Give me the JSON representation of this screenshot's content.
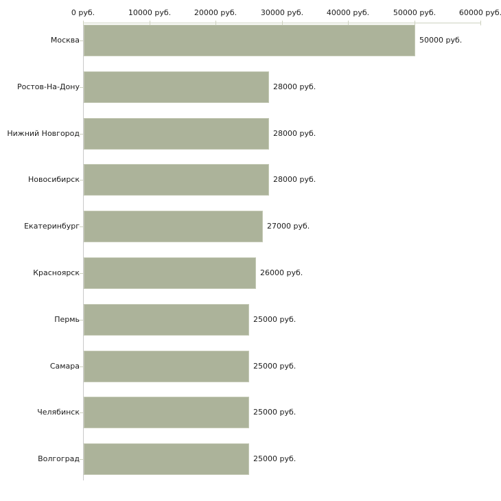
{
  "chart_data": {
    "type": "bar",
    "orientation": "horizontal",
    "title": "",
    "unit": "руб.",
    "categories": [
      "Москва",
      "Ростов-На-Дону",
      "Нижний Новгород",
      "Новосибирск",
      "Екатеринбург",
      "Красноярск",
      "Пермь",
      "Самара",
      "Челябинск",
      "Волгоград"
    ],
    "values": [
      50000,
      28000,
      28000,
      28000,
      27000,
      26000,
      25000,
      25000,
      25000,
      25000
    ],
    "value_labels": [
      "50000 руб.",
      "28000 руб.",
      "28000 руб.",
      "28000 руб.",
      "27000 руб.",
      "26000 руб.",
      "25000 руб.",
      "25000 руб.",
      "25000 руб.",
      "25000 руб."
    ],
    "xlim": [
      0,
      60000
    ],
    "x_tick_values": [
      0,
      10000,
      20000,
      30000,
      40000,
      50000,
      60000
    ],
    "x_tick_labels": [
      "0 руб.",
      "10000 руб.",
      "20000 руб.",
      "30000 руб.",
      "40000 руб.",
      "50000 руб.",
      "60000 руб."
    ],
    "axis_position": "top",
    "grid": false,
    "legend": false,
    "colors": {
      "bar_fill": "#acb39a",
      "bar_border": "#c5cab6",
      "axis_line": "#cdd1bf",
      "baseline": "#c9c9c9",
      "text": "#1a1a1a",
      "background": "#ffffff"
    }
  }
}
